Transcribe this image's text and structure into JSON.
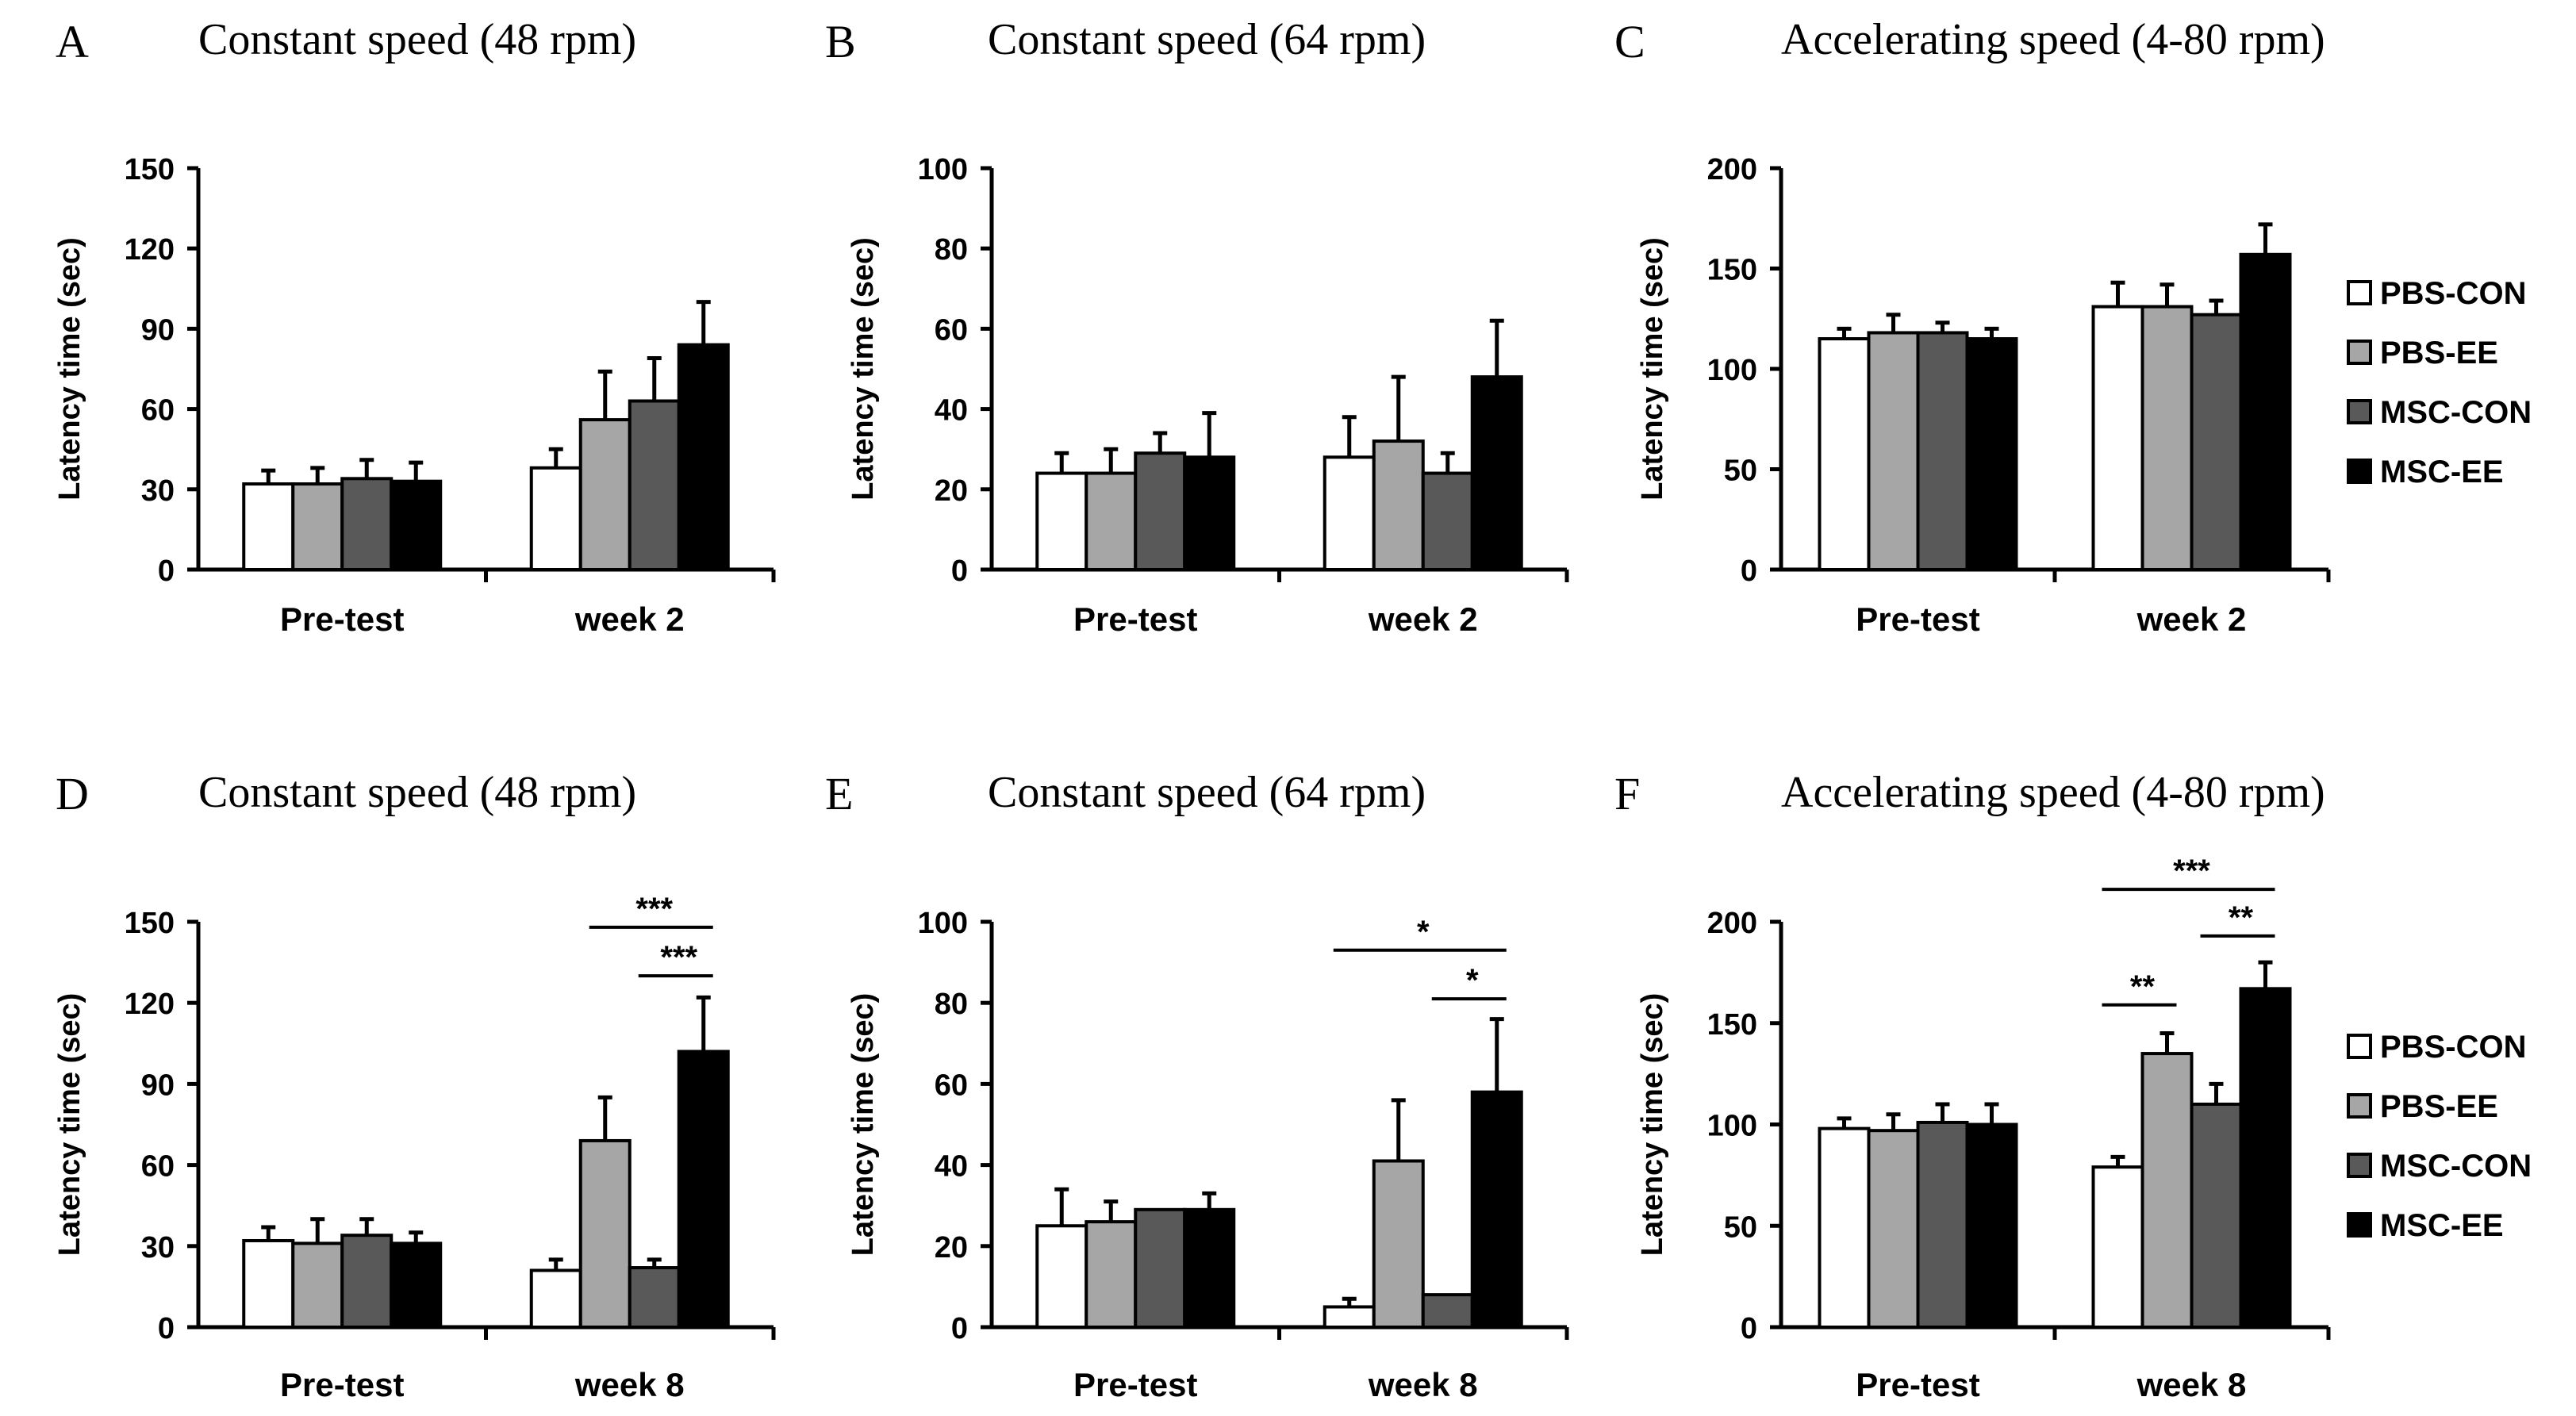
{
  "figure": {
    "legend_groups": [
      {
        "name": "PBS-CON",
        "color": "#ffffff"
      },
      {
        "name": "PBS-EE",
        "color": "#a6a6a6"
      },
      {
        "name": "MSC-CON",
        "color": "#595959"
      },
      {
        "name": "MSC-EE",
        "color": "#000000"
      }
    ]
  },
  "chart_data": [
    {
      "type": "bar",
      "panel": "A",
      "title": "Constant speed (48 rpm)",
      "ylabel": "Latency time (sec)",
      "xlabel": "",
      "categories": [
        "Pre-test",
        "week 2"
      ],
      "ylim": [
        0,
        150
      ],
      "yticks": [
        0,
        30,
        60,
        90,
        120,
        150
      ],
      "series": [
        {
          "name": "PBS-CON",
          "values": [
            32,
            38
          ],
          "errors": [
            5,
            7
          ]
        },
        {
          "name": "PBS-EE",
          "values": [
            32,
            56
          ],
          "errors": [
            6,
            18
          ]
        },
        {
          "name": "MSC-CON",
          "values": [
            34,
            63
          ],
          "errors": [
            7,
            16
          ]
        },
        {
          "name": "MSC-EE",
          "values": [
            33,
            84
          ],
          "errors": [
            7,
            16
          ]
        }
      ],
      "significance": []
    },
    {
      "type": "bar",
      "panel": "B",
      "title": "Constant speed (64 rpm)",
      "ylabel": "Latency time (sec)",
      "xlabel": "",
      "categories": [
        "Pre-test",
        "week 2"
      ],
      "ylim": [
        0,
        100
      ],
      "yticks": [
        0,
        20,
        40,
        60,
        80,
        100
      ],
      "series": [
        {
          "name": "PBS-CON",
          "values": [
            24,
            28
          ],
          "errors": [
            5,
            10
          ]
        },
        {
          "name": "PBS-EE",
          "values": [
            24,
            32
          ],
          "errors": [
            6,
            16
          ]
        },
        {
          "name": "MSC-CON",
          "values": [
            29,
            24
          ],
          "errors": [
            5,
            5
          ]
        },
        {
          "name": "MSC-EE",
          "values": [
            28,
            48
          ],
          "errors": [
            11,
            14
          ]
        }
      ],
      "significance": []
    },
    {
      "type": "bar",
      "panel": "C",
      "title": "Accelerating speed (4-80 rpm)",
      "ylabel": "Latency time (sec)",
      "xlabel": "",
      "categories": [
        "Pre-test",
        "week 2"
      ],
      "ylim": [
        0,
        200
      ],
      "yticks": [
        0,
        50,
        100,
        150,
        200
      ],
      "series": [
        {
          "name": "PBS-CON",
          "values": [
            115,
            131
          ],
          "errors": [
            5,
            12
          ]
        },
        {
          "name": "PBS-EE",
          "values": [
            118,
            131
          ],
          "errors": [
            9,
            11
          ]
        },
        {
          "name": "MSC-CON",
          "values": [
            118,
            127
          ],
          "errors": [
            5,
            7
          ]
        },
        {
          "name": "MSC-EE",
          "values": [
            115,
            157
          ],
          "errors": [
            5,
            15
          ]
        }
      ],
      "significance": []
    },
    {
      "type": "bar",
      "panel": "D",
      "title": "Constant speed (48 rpm)",
      "ylabel": "Latency time (sec)",
      "xlabel": "",
      "categories": [
        "Pre-test",
        "week 8"
      ],
      "ylim": [
        0,
        150
      ],
      "yticks": [
        0,
        30,
        60,
        90,
        120,
        150
      ],
      "series": [
        {
          "name": "PBS-CON",
          "values": [
            32,
            21
          ],
          "errors": [
            5,
            4
          ]
        },
        {
          "name": "PBS-EE",
          "values": [
            31,
            69
          ],
          "errors": [
            9,
            16
          ]
        },
        {
          "name": "MSC-CON",
          "values": [
            34,
            22
          ],
          "errors": [
            6,
            3
          ]
        },
        {
          "name": "MSC-EE",
          "values": [
            31,
            102
          ],
          "errors": [
            4,
            20
          ]
        }
      ],
      "significance": [
        {
          "from": "PBS-EE",
          "to": "MSC-EE",
          "category": "week 8",
          "label": "***",
          "y": 148
        },
        {
          "from": "MSC-CON",
          "to": "MSC-EE",
          "category": "week 8",
          "label": "***",
          "y": 130
        }
      ]
    },
    {
      "type": "bar",
      "panel": "E",
      "title": "Constant speed (64 rpm)",
      "ylabel": "Latency time (sec)",
      "xlabel": "",
      "categories": [
        "Pre-test",
        "week 8"
      ],
      "ylim": [
        0,
        100
      ],
      "yticks": [
        0,
        20,
        40,
        60,
        80,
        100
      ],
      "series": [
        {
          "name": "PBS-CON",
          "values": [
            25,
            5
          ],
          "errors": [
            9,
            2
          ]
        },
        {
          "name": "PBS-EE",
          "values": [
            26,
            41
          ],
          "errors": [
            5,
            15
          ]
        },
        {
          "name": "MSC-CON",
          "values": [
            29,
            8
          ],
          "errors": [
            0,
            0
          ]
        },
        {
          "name": "MSC-EE",
          "values": [
            29,
            58
          ],
          "errors": [
            4,
            18
          ]
        }
      ],
      "significance": [
        {
          "from": "PBS-CON",
          "to": "MSC-EE",
          "category": "week 8",
          "label": "*",
          "y": 93
        },
        {
          "from": "MSC-CON",
          "to": "MSC-EE",
          "category": "week 8",
          "label": "*",
          "y": 81
        }
      ]
    },
    {
      "type": "bar",
      "panel": "F",
      "title": "Accelerating speed (4-80 rpm)",
      "ylabel": "Latency time (sec)",
      "xlabel": "",
      "categories": [
        "Pre-test",
        "week 8"
      ],
      "ylim": [
        0,
        200
      ],
      "yticks": [
        0,
        50,
        100,
        150,
        200
      ],
      "series": [
        {
          "name": "PBS-CON",
          "values": [
            98,
            79
          ],
          "errors": [
            5,
            5
          ]
        },
        {
          "name": "PBS-EE",
          "values": [
            97,
            135
          ],
          "errors": [
            8,
            10
          ]
        },
        {
          "name": "MSC-CON",
          "values": [
            101,
            110
          ],
          "errors": [
            9,
            10
          ]
        },
        {
          "name": "MSC-EE",
          "values": [
            100,
            167
          ],
          "errors": [
            10,
            13
          ]
        }
      ],
      "significance": [
        {
          "from": "PBS-CON",
          "to": "MSC-EE",
          "category": "week 8",
          "label": "***",
          "y": 216
        },
        {
          "from": "PBS-CON",
          "to": "PBS-EE",
          "category": "week 8",
          "label": "**",
          "y": 159
        },
        {
          "from": "MSC-CON",
          "to": "MSC-EE",
          "category": "week 8",
          "label": "**",
          "y": 193
        }
      ]
    }
  ]
}
